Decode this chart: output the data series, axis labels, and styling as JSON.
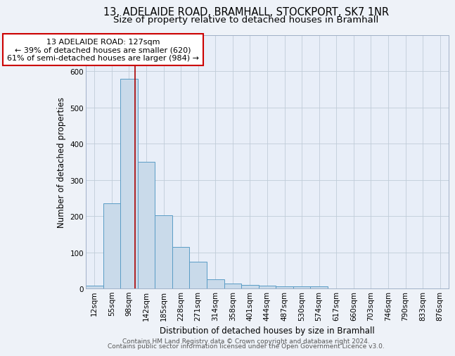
{
  "title": "13, ADELAIDE ROAD, BRAMHALL, STOCKPORT, SK7 1NR",
  "subtitle": "Size of property relative to detached houses in Bramhall",
  "xlabel": "Distribution of detached houses by size in Bramhall",
  "ylabel": "Number of detached properties",
  "bar_labels": [
    "12sqm",
    "55sqm",
    "98sqm",
    "142sqm",
    "185sqm",
    "228sqm",
    "271sqm",
    "314sqm",
    "358sqm",
    "401sqm",
    "444sqm",
    "487sqm",
    "530sqm",
    "574sqm",
    "617sqm",
    "660sqm",
    "703sqm",
    "746sqm",
    "790sqm",
    "833sqm",
    "876sqm"
  ],
  "bar_values": [
    8,
    236,
    580,
    350,
    202,
    115,
    74,
    25,
    14,
    9,
    8,
    6,
    6,
    5,
    0,
    0,
    0,
    0,
    0,
    0,
    0
  ],
  "bar_color": "#c9daea",
  "bar_edge_color": "#5a9cc5",
  "red_line_index": 2.35,
  "red_line_color": "#aa0000",
  "annotation_text": "13 ADELAIDE ROAD: 127sqm\n← 39% of detached houses are smaller (620)\n61% of semi-detached houses are larger (984) →",
  "annotation_box_color": "white",
  "annotation_box_edge": "#cc0000",
  "ylim": [
    0,
    700
  ],
  "yticks": [
    0,
    100,
    200,
    300,
    400,
    500,
    600,
    700
  ],
  "footer_line1": "Contains HM Land Registry data © Crown copyright and database right 2024.",
  "footer_line2": "Contains public sector information licensed under the Open Government Licence v3.0.",
  "bg_color": "#eef2f8",
  "plot_bg_color": "#e8eef8",
  "grid_color": "#c0ccd8",
  "title_fontsize": 10.5,
  "subtitle_fontsize": 9.5,
  "axis_label_fontsize": 8.5,
  "tick_fontsize": 7.5,
  "annotation_fontsize": 8,
  "footer_fontsize": 6.5
}
